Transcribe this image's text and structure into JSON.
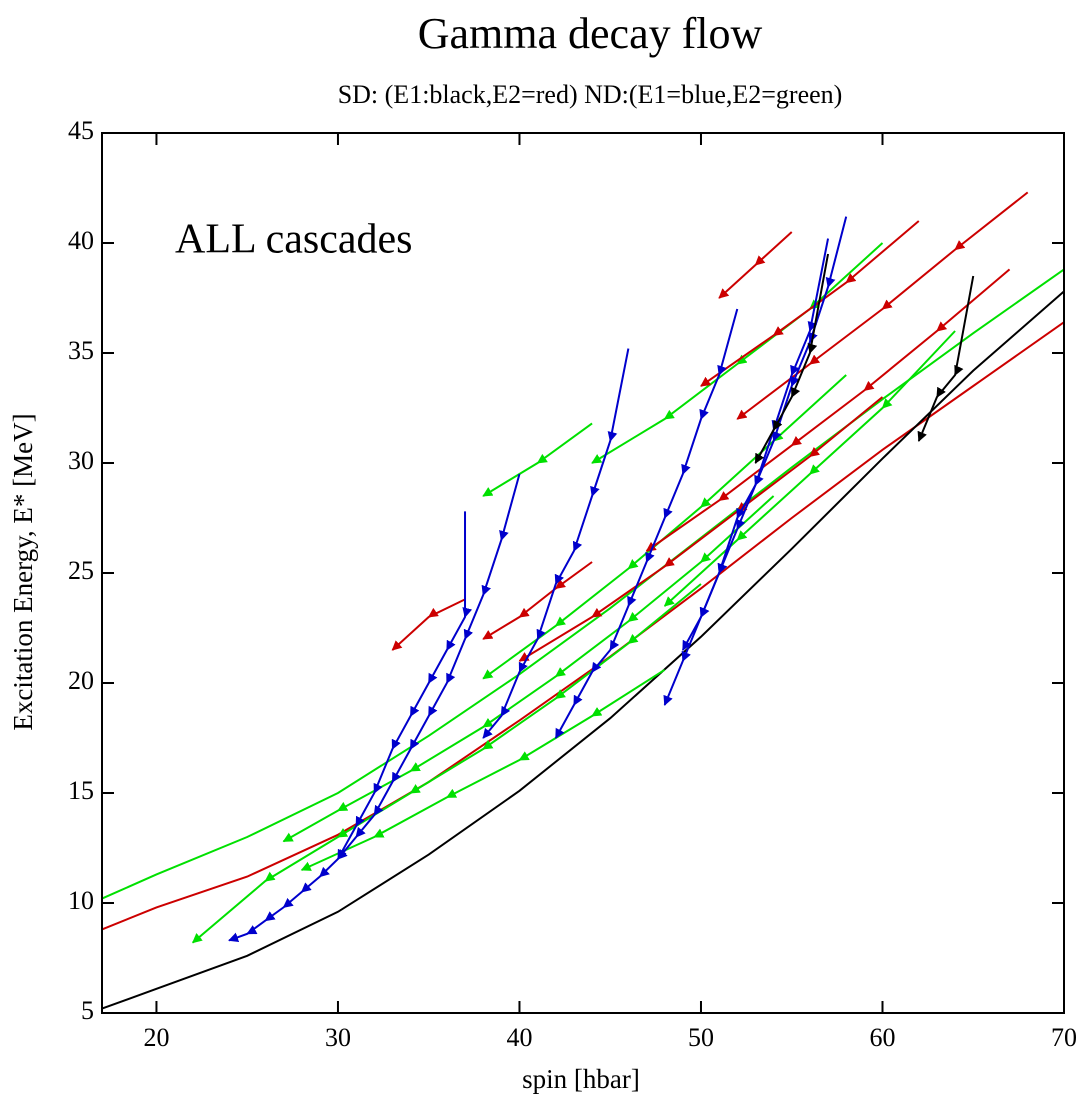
{
  "chart_data": {
    "type": "line",
    "title": "Gamma decay flow",
    "subtitle": "SD: (E1:black,E2=red) ND:(E1=blue,E2=green)",
    "x_label": "spin [hbar]",
    "y_label": "Excitation Energy, E* [MeV]",
    "annotation": "ALL cascades",
    "xlim": [
      17,
      70
    ],
    "xticks": [
      20,
      30,
      40,
      50,
      60,
      70
    ],
    "ylim": [
      5,
      45
    ],
    "yticks": [
      5,
      10,
      15,
      20,
      25,
      30,
      35,
      40,
      45
    ],
    "grid": false,
    "series": [
      {
        "color": "#00e000",
        "x": [
          17,
          20,
          25,
          30,
          35,
          40,
          45,
          50,
          55,
          60,
          65,
          70
        ],
        "values": [
          10.2,
          11.3,
          13.0,
          15.0,
          17.6,
          20.4,
          23.4,
          26.6,
          29.8,
          32.9,
          35.9,
          38.8
        ]
      },
      {
        "color": "#cc0000",
        "x": [
          17,
          20,
          25,
          30,
          35,
          40,
          45,
          50,
          55,
          60,
          65,
          70
        ],
        "values": [
          8.8,
          9.8,
          11.2,
          13.1,
          15.5,
          18.3,
          21.2,
          24.3,
          27.5,
          30.6,
          33.5,
          36.4
        ]
      },
      {
        "color": "#000000",
        "x": [
          17,
          20,
          25,
          30,
          35,
          40,
          45,
          50,
          55,
          60,
          65,
          70
        ],
        "values": [
          5.2,
          6.1,
          7.6,
          9.6,
          12.2,
          15.1,
          18.4,
          22.1,
          26.1,
          30.2,
          34.2,
          37.8
        ]
      },
      {
        "color": "#00e000",
        "x": [
          60,
          56,
          52,
          48,
          44
        ],
        "values": [
          40.0,
          37.0,
          34.5,
          32.0,
          30.0
        ]
      },
      {
        "color": "#00e000",
        "x": [
          44,
          41,
          38
        ],
        "values": [
          31.8,
          30.0,
          28.5
        ]
      },
      {
        "color": "#00e000",
        "x": [
          54,
          50,
          46,
          42,
          38,
          34,
          30,
          27
        ],
        "values": [
          28.5,
          25.5,
          22.8,
          20.3,
          18.0,
          16.0,
          14.2,
          12.8
        ]
      },
      {
        "color": "#00e000",
        "x": [
          50,
          46,
          42,
          38,
          34,
          30,
          26,
          22
        ],
        "values": [
          24.5,
          21.8,
          19.3,
          17.0,
          15.0,
          13.0,
          11.0,
          8.2
        ]
      },
      {
        "color": "#00e000",
        "x": [
          58,
          54,
          50,
          46,
          42,
          38
        ],
        "values": [
          34.0,
          31.0,
          28.0,
          25.2,
          22.6,
          20.2
        ]
      },
      {
        "color": "#00e000",
        "x": [
          48,
          44,
          40,
          36,
          32,
          28
        ],
        "values": [
          20.6,
          18.5,
          16.5,
          14.8,
          13.0,
          11.5
        ]
      },
      {
        "color": "#00e000",
        "x": [
          64,
          60,
          56,
          52,
          48
        ],
        "values": [
          36.0,
          32.5,
          29.5,
          26.5,
          23.5
        ]
      },
      {
        "color": "#cc0000",
        "x": [
          68,
          64,
          60,
          56,
          52
        ],
        "values": [
          42.3,
          39.7,
          37.0,
          34.5,
          32.0
        ]
      },
      {
        "color": "#cc0000",
        "x": [
          67,
          63,
          59,
          55,
          51,
          47
        ],
        "values": [
          38.8,
          36.0,
          33.3,
          30.8,
          28.3,
          26.0
        ]
      },
      {
        "color": "#cc0000",
        "x": [
          55,
          53,
          51
        ],
        "values": [
          40.5,
          39.0,
          37.5
        ]
      },
      {
        "color": "#cc0000",
        "x": [
          44,
          42,
          40,
          38
        ],
        "values": [
          25.5,
          24.3,
          23.0,
          22.0
        ]
      },
      {
        "color": "#cc0000",
        "x": [
          37,
          35,
          33
        ],
        "values": [
          23.8,
          23.0,
          21.5
        ]
      },
      {
        "color": "#cc0000",
        "x": [
          62,
          58,
          54,
          50
        ],
        "values": [
          41.0,
          38.2,
          35.8,
          33.5
        ]
      },
      {
        "color": "#cc0000",
        "x": [
          60,
          56,
          52,
          48,
          44,
          40
        ],
        "values": [
          33.0,
          30.3,
          27.8,
          25.3,
          23.0,
          21.0
        ]
      },
      {
        "color": "#0000cc",
        "x": [
          37,
          37,
          36,
          35,
          34,
          33,
          32,
          31,
          30
        ],
        "values": [
          27.8,
          23.0,
          21.5,
          20.0,
          18.5,
          17.0,
          15.0,
          13.5,
          12.0
        ]
      },
      {
        "color": "#0000cc",
        "x": [
          58,
          57,
          56,
          55,
          54,
          53,
          52,
          51,
          50,
          49
        ],
        "values": [
          41.2,
          38.0,
          35.5,
          33.5,
          31.0,
          29.0,
          27.0,
          25.0,
          23.0,
          21.5
        ]
      },
      {
        "color": "#0000cc",
        "x": [
          46,
          45,
          44,
          43,
          42,
          41,
          40,
          39,
          38
        ],
        "values": [
          35.2,
          31.0,
          28.5,
          26.0,
          24.5,
          22.0,
          20.5,
          18.5,
          17.5
        ]
      },
      {
        "color": "#0000cc",
        "x": [
          40,
          39,
          38,
          37,
          36,
          35,
          34,
          33,
          32,
          31,
          30,
          29,
          28,
          27,
          26,
          25,
          24
        ],
        "values": [
          29.5,
          26.5,
          24.0,
          22.0,
          20.0,
          18.5,
          17.0,
          15.5,
          14.0,
          13.0,
          12.0,
          11.2,
          10.5,
          9.8,
          9.2,
          8.6,
          8.3
        ]
      },
      {
        "color": "#0000cc",
        "x": [
          52,
          51,
          50,
          49,
          48,
          47,
          46,
          45,
          44,
          43,
          42
        ],
        "values": [
          37.0,
          34.0,
          32.0,
          29.5,
          27.5,
          25.5,
          23.5,
          21.5,
          20.5,
          19.0,
          17.5
        ]
      },
      {
        "color": "#0000cc",
        "x": [
          57,
          56,
          55,
          54,
          53,
          52,
          51,
          50,
          49,
          48
        ],
        "values": [
          40.2,
          36.0,
          34.0,
          31.5,
          29.0,
          27.5,
          25.0,
          23.0,
          21.0,
          19.0
        ]
      },
      {
        "color": "#000000",
        "x": [
          57,
          56,
          55,
          54,
          53
        ],
        "values": [
          39.5,
          35.0,
          33.0,
          31.5,
          30.0
        ]
      },
      {
        "color": "#000000",
        "x": [
          65,
          64,
          63,
          62
        ],
        "values": [
          38.5,
          34.0,
          33.0,
          31.0
        ]
      }
    ]
  }
}
